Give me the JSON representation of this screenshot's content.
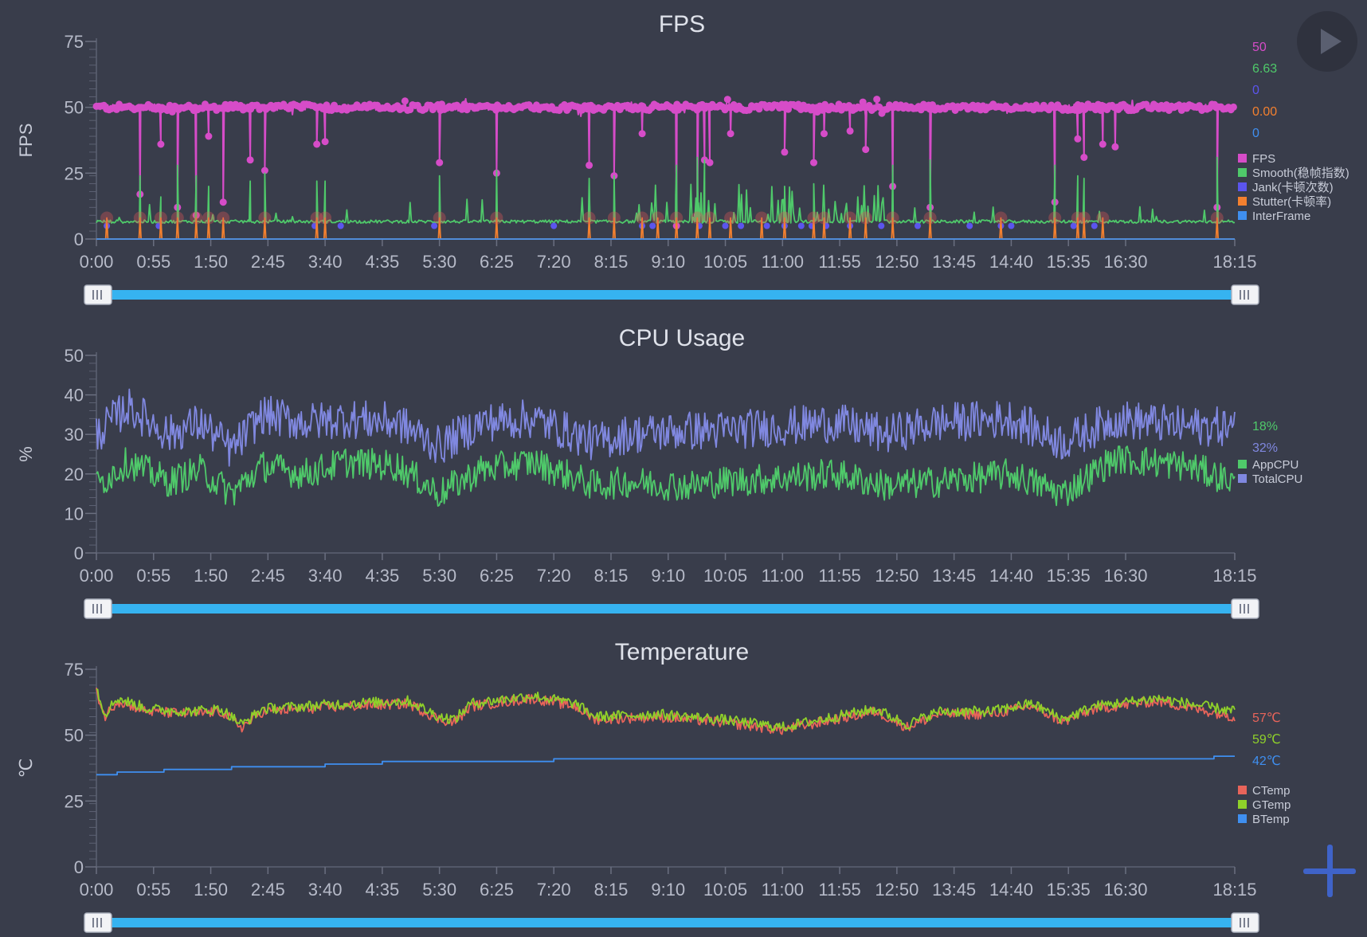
{
  "controls": {
    "play_icon": "play-icon",
    "add_icon": "plus-icon"
  },
  "chart_data": [
    {
      "type": "line",
      "id": "fps",
      "title": "FPS",
      "ylabel": "FPS",
      "xlabel": "",
      "ylim": [
        0,
        75
      ],
      "yticks": [
        0,
        25,
        50,
        75
      ],
      "xlim": [
        "0:00",
        "18:15"
      ],
      "xticks": [
        "0:00",
        "0:55",
        "1:50",
        "2:45",
        "3:40",
        "4:35",
        "5:30",
        "6:25",
        "7:20",
        "8:15",
        "9:10",
        "10:05",
        "11:00",
        "11:55",
        "12:50",
        "13:45",
        "14:40",
        "15:35",
        "16:30",
        "18:15"
      ],
      "grid": false,
      "legend_position": "right",
      "current_values": [
        {
          "text": "50",
          "color": "#d64cc8"
        },
        {
          "text": "6.63",
          "color": "#4fc96a"
        },
        {
          "text": "0",
          "color": "#5b55ee"
        },
        {
          "text": "0.00",
          "color": "#f3802f"
        },
        {
          "text": "0",
          "color": "#3f8ff0"
        }
      ],
      "series": [
        {
          "name": "FPS",
          "color": "#d64cc8",
          "pattern": "fps",
          "base": 50,
          "range": [
            46,
            55
          ],
          "dips": [
            [
              "0:42",
              17
            ],
            [
              "1:02",
              36
            ],
            [
              "1:18",
              12
            ],
            [
              "1:36",
              9
            ],
            [
              "1:48",
              39
            ],
            [
              "2:02",
              14
            ],
            [
              "2:28",
              30
            ],
            [
              "2:42",
              26
            ],
            [
              "3:32",
              36
            ],
            [
              "3:40",
              37
            ],
            [
              "5:30",
              29
            ],
            [
              "6:25",
              25
            ],
            [
              "7:54",
              28
            ],
            [
              "8:18",
              24
            ],
            [
              "8:45",
              40
            ],
            [
              "9:18",
              5
            ],
            [
              "9:38",
              9
            ],
            [
              "9:45",
              30
            ],
            [
              "9:50",
              29
            ],
            [
              "10:10",
              40
            ],
            [
              "11:02",
              33
            ],
            [
              "11:30",
              29
            ],
            [
              "11:40",
              40
            ],
            [
              "12:05",
              41
            ],
            [
              "12:20",
              34
            ],
            [
              "12:46",
              20
            ],
            [
              "13:22",
              12
            ],
            [
              "15:22",
              14
            ],
            [
              "15:44",
              38
            ],
            [
              "15:50",
              31
            ],
            [
              "16:08",
              36
            ],
            [
              "16:20",
              35
            ],
            [
              "17:58",
              12
            ]
          ]
        },
        {
          "name": "Smooth(稳帧指数)",
          "color": "#4fc96a",
          "pattern": "smooth",
          "base": 6.63,
          "range": [
            4,
            31
          ],
          "spikes": [
            [
              "0:42",
              24
            ],
            [
              "1:02",
              16
            ],
            [
              "1:18",
              28
            ],
            [
              "1:36",
              24
            ],
            [
              "1:48",
              20
            ],
            [
              "2:28",
              22
            ],
            [
              "2:42",
              25
            ],
            [
              "3:32",
              22
            ],
            [
              "3:40",
              22
            ],
            [
              "5:30",
              24
            ],
            [
              "6:25",
              26
            ],
            [
              "7:54",
              23
            ],
            [
              "8:18",
              24
            ],
            [
              "9:18",
              28
            ],
            [
              "9:38",
              31
            ],
            [
              "9:45",
              30
            ],
            [
              "11:02",
              20
            ],
            [
              "11:30",
              21
            ],
            [
              "12:46",
              28
            ],
            [
              "13:22",
              30
            ],
            [
              "15:22",
              28
            ],
            [
              "15:44",
              24
            ],
            [
              "15:50",
              23
            ],
            [
              "17:58",
              31
            ]
          ]
        },
        {
          "name": "Jank(卡顿次数)",
          "color": "#5b55ee",
          "pattern": "markers",
          "value": 5,
          "at": [
            "0:10",
            "1:00",
            "3:30",
            "3:55",
            "5:25",
            "7:20",
            "8:45",
            "8:55",
            "9:40",
            "10:05",
            "10:20",
            "10:45",
            "11:02",
            "11:18",
            "11:28",
            "11:42",
            "12:05",
            "12:35",
            "13:10",
            "14:00",
            "14:30",
            "14:40",
            "15:40",
            "16:00"
          ]
        },
        {
          "name": "Stutter(卡顿率)",
          "color": "#f3802f",
          "pattern": "stutter",
          "base": 0,
          "value": 8,
          "at": [
            "0:10",
            "0:42",
            "1:02",
            "1:18",
            "1:36",
            "1:48",
            "2:02",
            "2:42",
            "3:32",
            "3:40",
            "5:30",
            "6:25",
            "7:54",
            "8:18",
            "8:45",
            "9:00",
            "9:18",
            "9:38",
            "9:50",
            "10:10",
            "10:40",
            "11:02",
            "11:30",
            "11:40",
            "12:05",
            "12:20",
            "12:46",
            "13:22",
            "14:30",
            "15:22",
            "15:44",
            "15:50",
            "16:08",
            "17:58"
          ]
        },
        {
          "name": "InterFrame",
          "color": "#3f8ff0",
          "pattern": "flat",
          "base": 0
        }
      ]
    },
    {
      "type": "line",
      "id": "cpu",
      "title": "CPU Usage",
      "ylabel": "%",
      "xlabel": "",
      "ylim": [
        0,
        50
      ],
      "yticks": [
        0,
        10,
        20,
        30,
        40,
        50
      ],
      "xlim": [
        "0:00",
        "18:15"
      ],
      "xticks": [
        "0:00",
        "0:55",
        "1:50",
        "2:45",
        "3:40",
        "4:35",
        "5:30",
        "6:25",
        "7:20",
        "8:15",
        "9:10",
        "10:05",
        "11:00",
        "11:55",
        "12:50",
        "13:45",
        "14:40",
        "15:35",
        "16:30",
        "18:15"
      ],
      "grid": false,
      "legend_position": "right",
      "current_values": [
        {
          "text": "18%",
          "color": "#4fc96a"
        },
        {
          "text": "32%",
          "color": "#8088e0"
        }
      ],
      "series": [
        {
          "name": "AppCPU",
          "color": "#4fc96a",
          "pattern": "noise",
          "base": 19,
          "amp": 4,
          "range": [
            9,
            27
          ],
          "profile": [
            [
              "0:00",
              17
            ],
            [
              "0:30",
              23
            ],
            [
              "1:10",
              18
            ],
            [
              "1:40",
              21
            ],
            [
              "2:10",
              15
            ],
            [
              "2:40",
              22
            ],
            [
              "3:20",
              20
            ],
            [
              "4:00",
              23
            ],
            [
              "4:50",
              22
            ],
            [
              "5:30",
              15
            ],
            [
              "6:10",
              21
            ],
            [
              "7:00",
              23
            ],
            [
              "8:00",
              17
            ],
            [
              "8:30",
              18
            ],
            [
              "9:30",
              17
            ],
            [
              "10:00",
              18
            ],
            [
              "11:00",
              19
            ],
            [
              "11:50",
              20
            ],
            [
              "12:40",
              17
            ],
            [
              "13:30",
              18
            ],
            [
              "14:40",
              20
            ],
            [
              "15:30",
              15
            ],
            [
              "16:20",
              24
            ],
            [
              "17:30",
              22
            ],
            [
              "18:15",
              18
            ]
          ]
        },
        {
          "name": "TotalCPU",
          "color": "#8088e0",
          "pattern": "noise",
          "base": 32,
          "amp": 5,
          "range": [
            22,
            46
          ],
          "profile": [
            [
              "0:00",
              30
            ],
            [
              "0:30",
              37
            ],
            [
              "1:10",
              30
            ],
            [
              "1:40",
              33
            ],
            [
              "2:10",
              26
            ],
            [
              "2:40",
              35
            ],
            [
              "3:20",
              33
            ],
            [
              "4:00",
              34
            ],
            [
              "4:50",
              33
            ],
            [
              "5:30",
              27
            ],
            [
              "6:10",
              33
            ],
            [
              "7:00",
              34
            ],
            [
              "8:00",
              28
            ],
            [
              "8:30",
              30
            ],
            [
              "9:30",
              31
            ],
            [
              "10:00",
              31
            ],
            [
              "11:00",
              32
            ],
            [
              "11:50",
              33
            ],
            [
              "12:40",
              30
            ],
            [
              "13:30",
              33
            ],
            [
              "14:40",
              34
            ],
            [
              "15:30",
              28
            ],
            [
              "16:20",
              34
            ],
            [
              "17:30",
              32
            ],
            [
              "18:15",
              32
            ]
          ]
        }
      ]
    },
    {
      "type": "line",
      "id": "temp",
      "title": "Temperature",
      "ylabel": "℃",
      "xlabel": "",
      "ylim": [
        0,
        75
      ],
      "yticks": [
        0,
        25,
        50,
        75
      ],
      "xlim": [
        "0:00",
        "18:15"
      ],
      "xticks": [
        "0:00",
        "0:55",
        "1:50",
        "2:45",
        "3:40",
        "4:35",
        "5:30",
        "6:25",
        "7:20",
        "8:15",
        "9:10",
        "10:05",
        "11:00",
        "11:55",
        "12:50",
        "13:45",
        "14:40",
        "15:35",
        "16:30",
        "18:15"
      ],
      "grid": false,
      "legend_position": "right",
      "current_values": [
        {
          "text": "57℃",
          "color": "#e8645a"
        },
        {
          "text": "59℃",
          "color": "#8fd12a"
        },
        {
          "text": "42℃",
          "color": "#3f8ff0"
        }
      ],
      "series": [
        {
          "name": "CTemp",
          "color": "#e8645a",
          "pattern": "noise",
          "base": 58,
          "amp": 2,
          "range": [
            50,
            68
          ],
          "profile": [
            [
              "0:00",
              67
            ],
            [
              "0:08",
              57
            ],
            [
              "0:20",
              63
            ],
            [
              "0:50",
              59
            ],
            [
              "1:30",
              58
            ],
            [
              "2:00",
              59
            ],
            [
              "2:20",
              53
            ],
            [
              "2:40",
              59
            ],
            [
              "3:20",
              60
            ],
            [
              "4:00",
              61
            ],
            [
              "5:00",
              62
            ],
            [
              "5:30",
              56
            ],
            [
              "5:45",
              55
            ],
            [
              "6:00",
              61
            ],
            [
              "7:00",
              64
            ],
            [
              "7:40",
              61
            ],
            [
              "8:00",
              56
            ],
            [
              "9:00",
              57
            ],
            [
              "10:00",
              55
            ],
            [
              "11:00",
              52
            ],
            [
              "11:50",
              56
            ],
            [
              "12:30",
              59
            ],
            [
              "13:00",
              53
            ],
            [
              "13:30",
              58
            ],
            [
              "14:20",
              58
            ],
            [
              "15:00",
              61
            ],
            [
              "15:30",
              55
            ],
            [
              "16:00",
              60
            ],
            [
              "17:00",
              63
            ],
            [
              "18:15",
              57
            ]
          ]
        },
        {
          "name": "GTemp",
          "color": "#8fd12a",
          "pattern": "noise",
          "base": 59,
          "amp": 2,
          "range": [
            51,
            69
          ],
          "profile": [
            [
              "0:00",
              68
            ],
            [
              "0:08",
              58
            ],
            [
              "0:20",
              64
            ],
            [
              "0:50",
              60
            ],
            [
              "1:30",
              59
            ],
            [
              "2:00",
              60
            ],
            [
              "2:20",
              54
            ],
            [
              "2:40",
              60
            ],
            [
              "3:20",
              61
            ],
            [
              "4:00",
              62
            ],
            [
              "5:00",
              63
            ],
            [
              "5:30",
              57
            ],
            [
              "5:45",
              56
            ],
            [
              "6:00",
              62
            ],
            [
              "7:00",
              65
            ],
            [
              "7:40",
              62
            ],
            [
              "8:00",
              57
            ],
            [
              "9:00",
              58
            ],
            [
              "10:00",
              56
            ],
            [
              "11:00",
              53
            ],
            [
              "11:50",
              57
            ],
            [
              "12:30",
              60
            ],
            [
              "13:00",
              54
            ],
            [
              "13:30",
              59
            ],
            [
              "14:20",
              59
            ],
            [
              "15:00",
              62
            ],
            [
              "15:30",
              56
            ],
            [
              "16:00",
              61
            ],
            [
              "17:00",
              64
            ],
            [
              "18:15",
              59
            ]
          ]
        },
        {
          "name": "BTemp",
          "color": "#3f8ff0",
          "pattern": "step",
          "steps": [
            [
              "0:00",
              35
            ],
            [
              "0:20",
              36
            ],
            [
              "1:05",
              37
            ],
            [
              "2:10",
              38
            ],
            [
              "3:40",
              39
            ],
            [
              "4:35",
              40
            ],
            [
              "7:20",
              41
            ],
            [
              "17:55",
              42
            ],
            [
              "18:15",
              42
            ]
          ]
        }
      ]
    }
  ]
}
